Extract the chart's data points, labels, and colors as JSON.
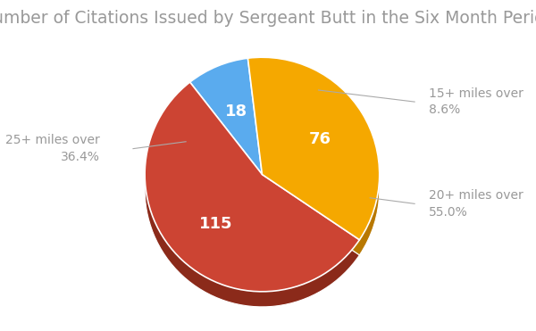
{
  "title": "Number of Citations Issued by Sergeant Butt in the Six Month Period",
  "slices": [
    18,
    115,
    76
  ],
  "label_names": [
    "15+ miles over",
    "20+ miles over",
    "25+ miles over"
  ],
  "percentages": [
    "8.6%",
    "55.0%",
    "36.4%"
  ],
  "colors": [
    "#5aabee",
    "#cc4433",
    "#f5a800"
  ],
  "shadow_colors": [
    "#3a7bbf",
    "#8b2a1a",
    "#b87800"
  ],
  "olive_color": "#8a7a00",
  "text_labels": [
    "18",
    "115",
    "76"
  ],
  "title_color": "#999999",
  "label_color": "#999999",
  "value_color": "#ffffff",
  "title_fontsize": 13.5,
  "label_fontsize": 10,
  "value_fontsize": 13,
  "startangle": 97,
  "figsize": [
    6.0,
    3.71
  ]
}
